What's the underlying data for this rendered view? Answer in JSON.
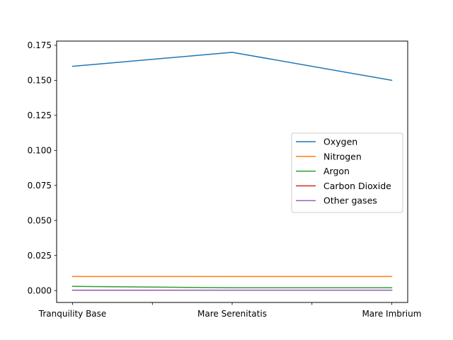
{
  "chart_data": {
    "type": "line",
    "title": "",
    "xlabel": "",
    "ylabel": "",
    "categories": [
      "Tranquility Base",
      "Mare Serenitatis",
      "Mare Imbrium"
    ],
    "ylim": [
      -0.0085,
      0.178
    ],
    "yticks": [
      0.0,
      0.025,
      0.05,
      0.075,
      0.1,
      0.125,
      0.15,
      0.175
    ],
    "ytick_labels": [
      "0.000",
      "0.025",
      "0.050",
      "0.075",
      "0.100",
      "0.125",
      "0.150",
      "0.175"
    ],
    "minor_xticks": [
      0.5,
      1.5
    ],
    "grid": false,
    "legend_position": "center-right",
    "series": [
      {
        "name": "Oxygen",
        "color": "#1f77b4",
        "values": [
          0.16,
          0.17,
          0.15
        ]
      },
      {
        "name": "Nitrogen",
        "color": "#ff7f0e",
        "values": [
          0.01,
          0.01,
          0.01
        ]
      },
      {
        "name": "Argon",
        "color": "#2ca02c",
        "values": [
          0.003,
          0.002,
          0.002
        ]
      },
      {
        "name": "Carbon Dioxide",
        "color": "#d62728",
        "values": [
          0.0002,
          0.0002,
          0.0002
        ]
      },
      {
        "name": "Other gases",
        "color": "#9467bd",
        "values": [
          0.0003,
          0.0003,
          0.0003
        ]
      }
    ]
  }
}
